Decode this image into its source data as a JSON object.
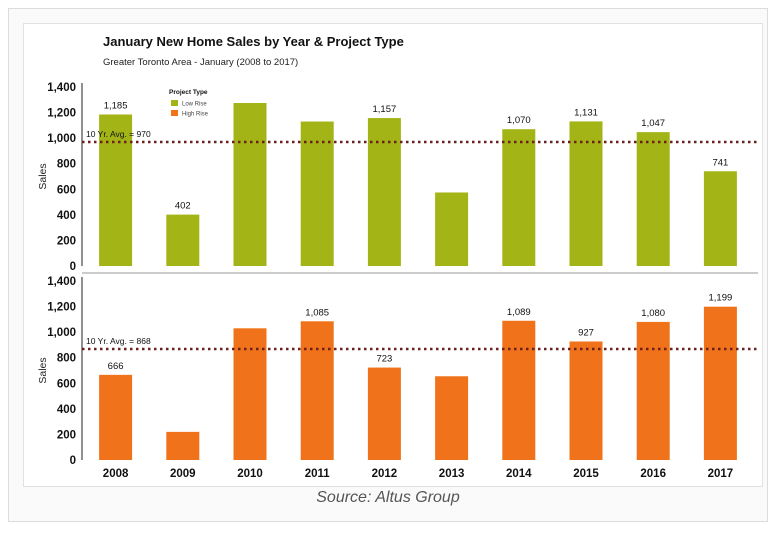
{
  "caption": "Source: Altus Group",
  "colors": {
    "low_rise": "#a3b516",
    "high_rise": "#f0731b",
    "avg_line": "#6b1f1f",
    "axis": "#222222"
  },
  "chart_data": {
    "type": "bar",
    "title": "January New Home Sales by Year & Project Type",
    "subtitle": "Greater Toronto Area - January (2008 to 2017)",
    "categories": [
      "2008",
      "2009",
      "2010",
      "2011",
      "2012",
      "2013",
      "2014",
      "2015",
      "2016",
      "2017"
    ],
    "ylabel": "Sales",
    "ylim": [
      0,
      1400
    ],
    "yticks": [
      0,
      200,
      400,
      600,
      800,
      1000,
      1200,
      1400
    ],
    "ytick_labels": [
      "0",
      "200",
      "400",
      "600",
      "800",
      "1,000",
      "1,200",
      "1,400"
    ],
    "legend": {
      "title": "Project Type",
      "placement": "top-left",
      "entries": [
        {
          "label": "Low Rise",
          "color": "#a3b516"
        },
        {
          "label": "High Rise",
          "color": "#f0731b"
        }
      ]
    },
    "series": [
      {
        "name": "Low Rise",
        "color": "#a3b516",
        "values": [
          1185,
          402,
          1275,
          1130,
          1157,
          575,
          1070,
          1131,
          1047,
          741
        ],
        "data_labels": [
          "1,185",
          "402",
          "",
          "",
          "1,157",
          "",
          "1,070",
          "1,131",
          "1,047",
          "741"
        ],
        "average": {
          "value": 970,
          "label": "10 Yr. Avg. = 970"
        }
      },
      {
        "name": "High Rise",
        "color": "#f0731b",
        "values": [
          666,
          220,
          1030,
          1085,
          723,
          655,
          1089,
          927,
          1080,
          1199
        ],
        "data_labels": [
          "666",
          "",
          "",
          "1,085",
          "723",
          "",
          "1,089",
          "927",
          "1,080",
          "1,199"
        ],
        "average": {
          "value": 868,
          "label": "10 Yr. Avg. = 868"
        }
      }
    ]
  }
}
